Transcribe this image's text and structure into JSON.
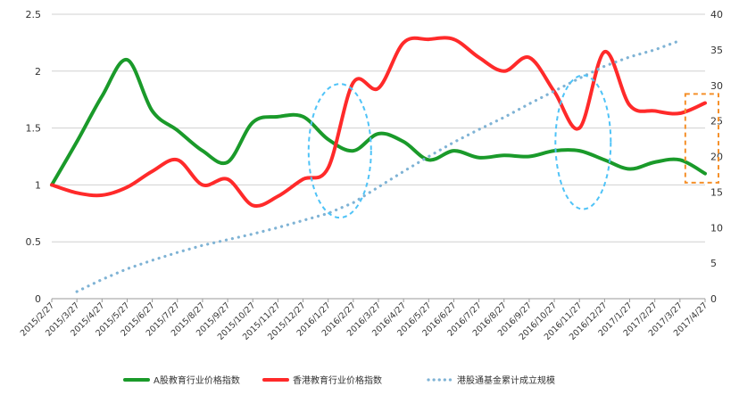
{
  "chart_data": {
    "type": "line",
    "categories": [
      "2015/2/27",
      "2015/3/27",
      "2015/4/27",
      "2015/5/27",
      "2015/6/27",
      "2015/7/27",
      "2015/8/27",
      "2015/9/27",
      "2015/10/27",
      "2015/11/27",
      "2015/12/27",
      "2016/1/27",
      "2016/2/27",
      "2016/3/27",
      "2016/4/27",
      "2016/5/27",
      "2016/6/27",
      "2016/7/27",
      "2016/8/27",
      "2016/9/27",
      "2016/10/27",
      "2016/11/27",
      "2016/12/27",
      "2017/1/27",
      "2017/2/27",
      "2017/3/27",
      "2017/4/27"
    ],
    "y_left_ticks": [
      "0",
      "0.5",
      "1",
      "1.5",
      "2",
      "2.5"
    ],
    "y_right_ticks": [
      "0",
      "5",
      "10",
      "15",
      "20",
      "25",
      "30",
      "35",
      "40"
    ],
    "ylim_left": [
      0,
      2.5
    ],
    "ylim_right": [
      0,
      40
    ],
    "grid": true,
    "legend_position": "bottom",
    "series": [
      {
        "name": "A股教育行业价格指数",
        "axis": "left",
        "color": "#1a9a2a",
        "style": "solid",
        "values": [
          1.0,
          1.38,
          1.78,
          2.1,
          1.65,
          1.48,
          1.3,
          1.2,
          1.55,
          1.6,
          1.6,
          1.4,
          1.3,
          1.45,
          1.38,
          1.22,
          1.3,
          1.24,
          1.26,
          1.25,
          1.3,
          1.3,
          1.22,
          1.14,
          1.2,
          1.22,
          1.1
        ]
      },
      {
        "name": "香港教育行业价格指数",
        "axis": "left",
        "color": "#ff2a2a",
        "style": "solid",
        "values": [
          1.0,
          0.93,
          0.91,
          0.98,
          1.12,
          1.22,
          1.0,
          1.05,
          0.82,
          0.9,
          1.05,
          1.15,
          1.9,
          1.85,
          2.25,
          2.28,
          2.28,
          2.12,
          2.0,
          2.12,
          1.82,
          1.5,
          2.17,
          1.7,
          1.65,
          1.63,
          1.72
        ]
      },
      {
        "name": "港股通基金累计成立规模",
        "axis": "right",
        "color": "#7fb3d5",
        "style": "dotted",
        "values": [
          null,
          1.0,
          2.7,
          4.2,
          5.4,
          6.5,
          7.5,
          8.3,
          9.1,
          10.0,
          11.0,
          12.0,
          13.5,
          15.7,
          17.9,
          20.0,
          22.0,
          23.8,
          25.5,
          27.4,
          29.2,
          31.0,
          32.7,
          34.0,
          35.0,
          36.3,
          null
        ]
      }
    ]
  },
  "annotations": {
    "ellipse_color": "#4fc3f7",
    "box_color": "#f5902a"
  }
}
